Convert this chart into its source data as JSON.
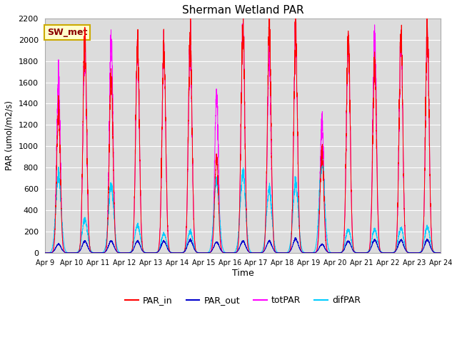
{
  "title": "Sherman Wetland PAR",
  "ylabel": "PAR (umol/m2/s)",
  "xlabel": "Time",
  "annotation": "SW_met",
  "ylim": [
    0,
    2200
  ],
  "num_days": 15,
  "colors": {
    "PAR_in": "#ff0000",
    "PAR_out": "#0000cc",
    "totPAR": "#ff00ff",
    "difPAR": "#00ccff"
  },
  "bg_color": "#dcdcdc",
  "par_in_peaks": [
    1320,
    2030,
    1650,
    1960,
    1950,
    2000,
    900,
    2140,
    2120,
    2050,
    960,
    2040,
    1780,
    2050,
    2040
  ],
  "par_out_peaks": [
    80,
    110,
    110,
    110,
    110,
    120,
    100,
    110,
    110,
    130,
    80,
    110,
    120,
    120,
    120
  ],
  "tot_par_peaks": [
    1620,
    1980,
    2000,
    1940,
    1940,
    1960,
    1490,
    2150,
    1860,
    2040,
    1250,
    2020,
    2020,
    2010,
    2040
  ],
  "dif_par_peaks": [
    720,
    320,
    630,
    260,
    180,
    200,
    690,
    760,
    600,
    660,
    870,
    220,
    220,
    230,
    240
  ],
  "tick_labels": [
    "Apr 9",
    "Apr 10",
    "Apr 11",
    "Apr 12",
    "Apr 13",
    "Apr 14",
    "Apr 15",
    "Apr 16",
    "Apr 17",
    "Apr 18",
    "Apr 19",
    "Apr 20",
    "Apr 21",
    "Apr 22",
    "Apr 23",
    "Apr 24"
  ]
}
